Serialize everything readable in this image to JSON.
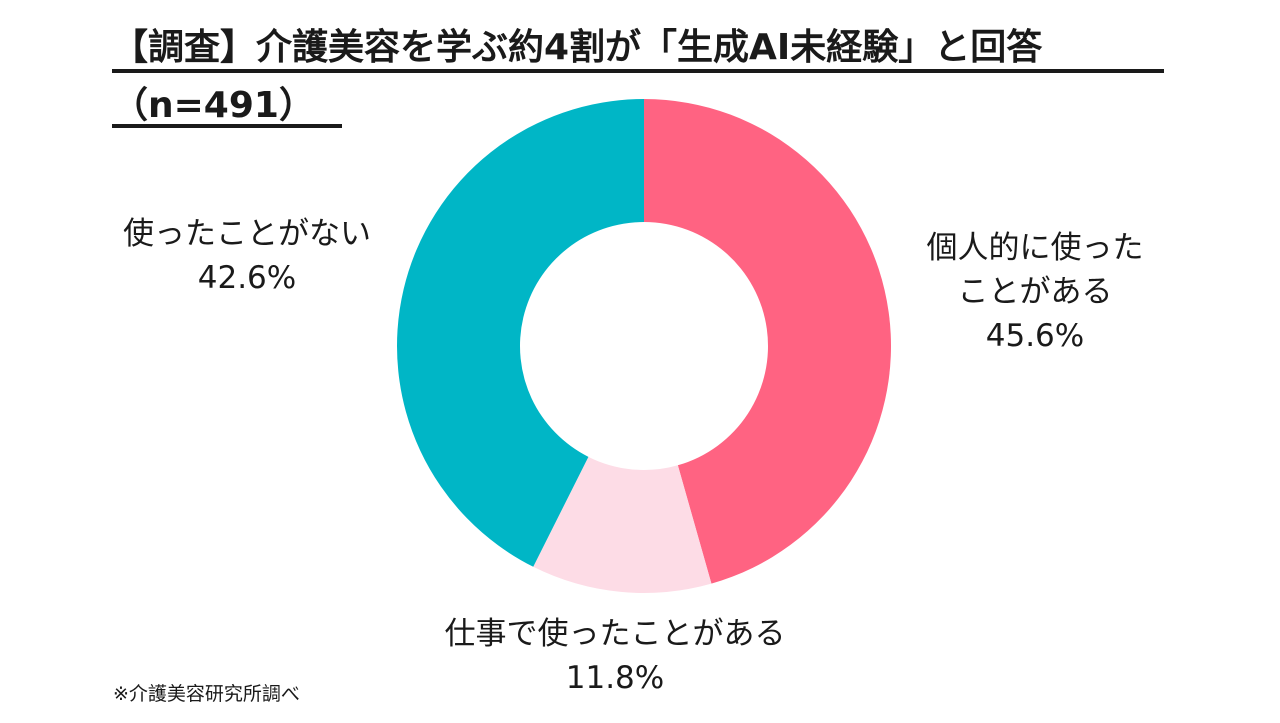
{
  "header": {
    "title_line1": "【調査】介護美容を学ぶ約4割が「生成AI未経験」と回答",
    "title_line2": "（n=491）"
  },
  "chart_data": {
    "type": "pie",
    "donut": true,
    "start_angle_deg": 0,
    "direction": "clockwise",
    "slices": [
      {
        "label_line1": "個人的に使った",
        "label_line2": "ことがある",
        "value": 45.6,
        "value_label": "45.6%",
        "color": "#ff6382"
      },
      {
        "label_line1": "仕事で使ったことがある",
        "label_line2": "",
        "value": 11.8,
        "value_label": "11.8%",
        "color": "#fddce6"
      },
      {
        "label_line1": "使ったことがない",
        "label_line2": "",
        "value": 42.6,
        "value_label": "42.6%",
        "color": "#00b6c6"
      }
    ]
  },
  "footer": {
    "source_note": "※介護美容研究所調べ"
  }
}
